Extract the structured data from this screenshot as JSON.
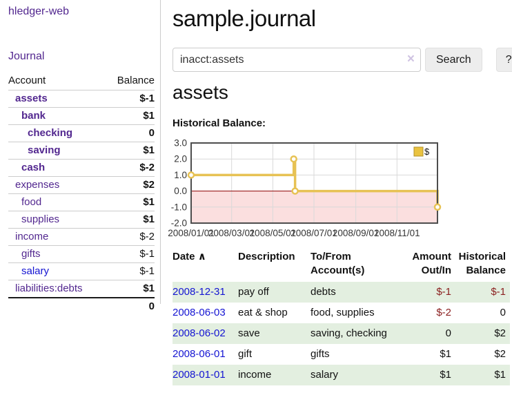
{
  "app_title": "hledger-web",
  "nav": {
    "journal_label": "Journal"
  },
  "sidebar": {
    "accounts_header": {
      "account": "Account",
      "balance": "Balance"
    },
    "accounts": [
      {
        "name": "assets",
        "depth": 1,
        "bold": true,
        "visited": true,
        "balance": "$-1"
      },
      {
        "name": "bank",
        "depth": 2,
        "bold": true,
        "visited": true,
        "balance": "$1"
      },
      {
        "name": "checking",
        "depth": 3,
        "bold": true,
        "visited": true,
        "balance": "0"
      },
      {
        "name": "saving",
        "depth": 3,
        "bold": true,
        "visited": true,
        "balance": "$1"
      },
      {
        "name": "cash",
        "depth": 2,
        "bold": true,
        "visited": true,
        "balance": "$-2"
      },
      {
        "name": "expenses",
        "depth": 1,
        "bold": false,
        "visited": true,
        "balance": "$2"
      },
      {
        "name": "food",
        "depth": 2,
        "bold": false,
        "visited": true,
        "balance": "$1"
      },
      {
        "name": "supplies",
        "depth": 2,
        "bold": false,
        "visited": true,
        "balance": "$1"
      },
      {
        "name": "income",
        "depth": 1,
        "bold": false,
        "visited": true,
        "balance": "$-2"
      },
      {
        "name": "gifts",
        "depth": 2,
        "bold": false,
        "visited": true,
        "balance": "$-1"
      },
      {
        "name": "salary",
        "depth": 2,
        "bold": false,
        "visited": false,
        "balance": "$-1"
      },
      {
        "name": "liabilities:debts",
        "depth": 1,
        "bold": false,
        "visited": true,
        "balance": "$1"
      }
    ],
    "total": "0"
  },
  "header": {
    "title": "sample.journal"
  },
  "search": {
    "query": "inacct:assets",
    "clear_icon": "×",
    "button_label": "Search",
    "help_label": "?"
  },
  "account_heading": "assets",
  "chart_heading": "Historical Balance:",
  "chart_data": {
    "type": "line",
    "subtype": "step",
    "title": "Historical Balance:",
    "legend": [
      {
        "label": "$",
        "color": "#eac340"
      }
    ],
    "legend_position": "top-right",
    "grid": true,
    "ylim": [
      -2,
      3
    ],
    "y_tick_labels": [
      "3.0",
      "2.0",
      "1.0",
      "0.0",
      "-1.0",
      "-2.0"
    ],
    "y_tick_values": [
      3,
      2,
      1,
      0,
      -1,
      -2
    ],
    "x_tick_labels": [
      "2008/01/01",
      "2008/03/01",
      "2008/05/01",
      "2008/07/01",
      "2008/09/01",
      "2008/11/01"
    ],
    "x_tick_days": [
      0,
      60,
      121,
      182,
      244,
      305
    ],
    "x_range_days": [
      0,
      365
    ],
    "series": [
      {
        "name": "$",
        "color": "#e7c254",
        "points": [
          {
            "date": "2008-01-01",
            "day": 0,
            "value": 1
          },
          {
            "date": "2008-06-01",
            "day": 152,
            "value": 2
          },
          {
            "date": "2008-06-03",
            "day": 154,
            "value": 0
          },
          {
            "date": "2008-12-31",
            "day": 365,
            "value": -1
          }
        ]
      }
    ],
    "negative_region_fill": "#fbdfdf",
    "zero_line_color": "#8b0000",
    "gridline_color": "#d9d9d9",
    "border_color": "#4d4d4d"
  },
  "register": {
    "headers": {
      "date": "Date",
      "sort_indicator": "∧",
      "description": "Description",
      "tofrom_line1": "To/From",
      "tofrom_line2": "Account(s)",
      "amount_line1": "Amount",
      "amount_line2": "Out/In",
      "balance_line1": "Historical",
      "balance_line2": "Balance"
    },
    "rows": [
      {
        "date": "2008-12-31",
        "description": "pay off",
        "accounts": "debts",
        "amount": "$-1",
        "balance": "$-1",
        "shade": true
      },
      {
        "date": "2008-06-03",
        "description": "eat & shop",
        "accounts": "food, supplies",
        "amount": "$-2",
        "balance": "0",
        "shade": false
      },
      {
        "date": "2008-06-02",
        "description": "save",
        "accounts": "saving, checking",
        "amount": "0",
        "balance": "$2",
        "shade": true
      },
      {
        "date": "2008-06-01",
        "description": "gift",
        "accounts": "gifts",
        "amount": "$1",
        "balance": "$2",
        "shade": false
      },
      {
        "date": "2008-01-01",
        "description": "income",
        "accounts": "salary",
        "amount": "$1",
        "balance": "$1",
        "shade": true
      }
    ]
  }
}
